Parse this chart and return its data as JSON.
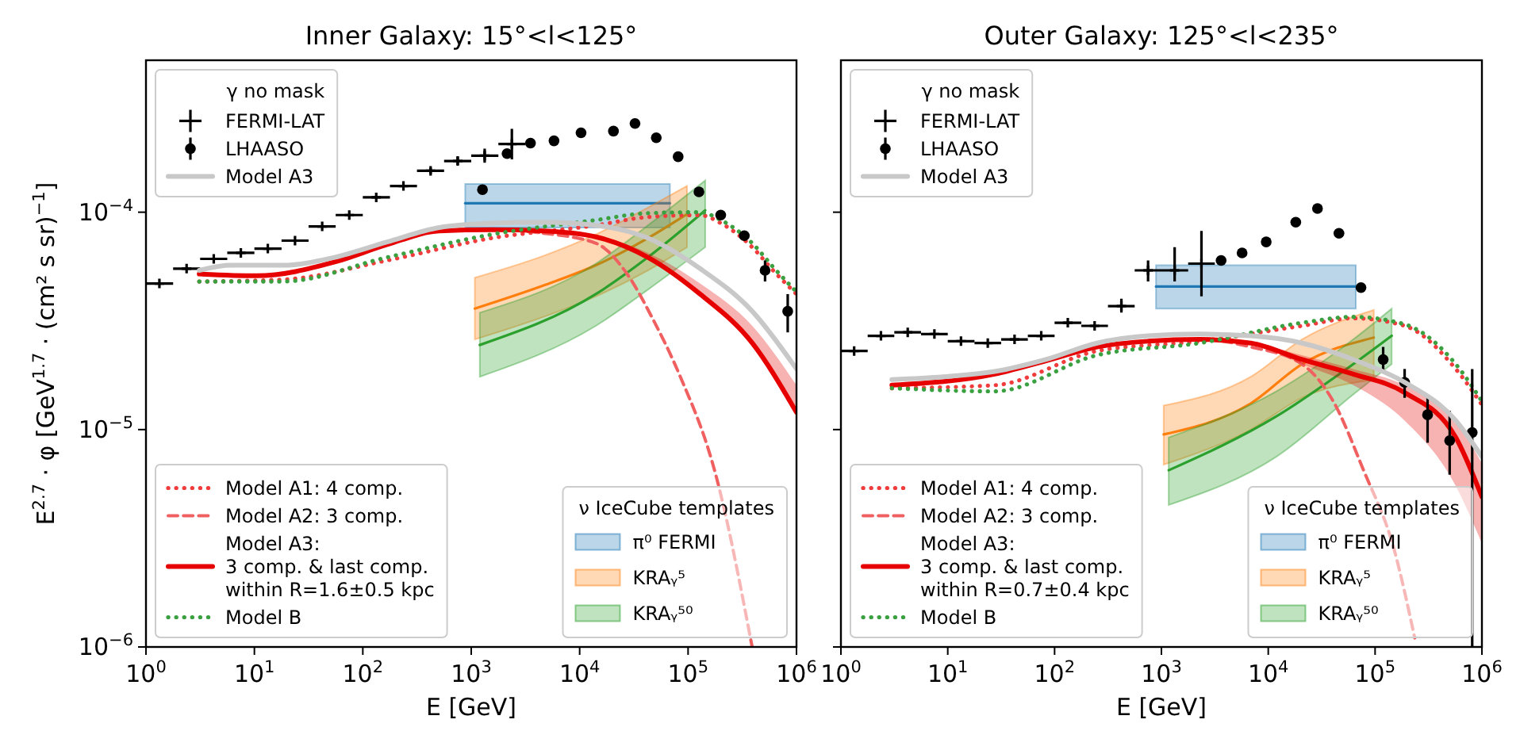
{
  "chart_data": [
    {
      "type": "line",
      "title": "Inner Galaxy: 15°<l<125°",
      "xlabel": "E [GeV]",
      "ylabel": "E$^{2.7}$ · φ [GeV$^{1.7}$ · (cm² s sr)$^{−1}$]",
      "log": "xy",
      "xlim": [
        1,
        1000000
      ],
      "ylim": [
        1e-06,
        0.0005
      ],
      "xticks": [
        {
          "value": 1,
          "label": "10$^{0}$"
        },
        {
          "value": 10,
          "label": "10$^{1}$"
        },
        {
          "value": 100,
          "label": "10$^{2}$"
        },
        {
          "value": 1000,
          "label": "10$^{3}$"
        },
        {
          "value": 10000,
          "label": "10$^{4}$"
        },
        {
          "value": 100000,
          "label": "10$^{5}$"
        },
        {
          "value": 1000000,
          "label": "10$^{6}$"
        }
      ],
      "yticks": [
        {
          "value": 1e-06,
          "label": "10$^{−6}$"
        },
        {
          "value": 1e-05,
          "label": "10$^{−5}$"
        },
        {
          "value": 0.0001,
          "label": "10$^{−4}$"
        }
      ],
      "legend": [
        "top left",
        "bottom left",
        "bottom right"
      ],
      "legend_title": [
        "γ no mask",
        null,
        "ν IceCube templates"
      ],
      "series": [
        {
          "name": "π⁰ FERMI",
          "color": "#1f77b4",
          "x": [
            880,
            68000
          ],
          "values": [
            0.00011,
            0.00011
          ],
          "lower": [
            8.5e-05,
            8.5e-05
          ],
          "upper": [
            0.000135,
            0.000135
          ]
        },
        {
          "name": "KRAᵧ⁵",
          "color": "#ff7f0e",
          "x": [
            1080,
            4650,
            14100,
            42600,
            97800
          ],
          "values": [
            3.6e-05,
            4.6e-05,
            5.7e-05,
            7.6e-05,
            9.8e-05
          ],
          "lower": [
            2.6e-05,
            3.3e-05,
            4.1e-05,
            5.4e-05,
            6.9e-05
          ],
          "upper": [
            5e-05,
            6.3e-05,
            7.9e-05,
            0.000105,
            0.000132
          ]
        },
        {
          "name": "KRAᵧ⁵⁰",
          "color": "#2ca02c",
          "x": [
            1200,
            14100,
            42600,
            144000
          ],
          "values": [
            2.45e-05,
            4.2e-05,
            6.2e-05,
            0.000102
          ],
          "lower": [
            1.75e-05,
            3e-05,
            4.4e-05,
            6.9e-05
          ],
          "upper": [
            3.45e-05,
            5.8e-05,
            8.7e-05,
            0.00014
          ]
        },
        {
          "name": "Model A1: 4 comp.",
          "color": "#f03c3c",
          "line_style": "dotted",
          "x": [
            3.1,
            18.3,
            168,
            1540,
            14100,
            42600,
            129000,
            201000,
            391000,
            608000,
            1000000
          ],
          "values": [
            4.8e-05,
            4.9e-05,
            6e-05,
            7.6e-05,
            8.7e-05,
            9.5e-05,
            9.7e-05,
            8.9e-05,
            6.9e-05,
            5.4e-05,
            4.2e-05
          ]
        },
        {
          "name": "Model A2: 3 comp.",
          "color": "#f06060",
          "line_style": "dashed",
          "x": [
            3.1,
            10.5,
            55,
            168,
            508,
            1540,
            4650,
            14100,
            27400,
            47700,
            82800,
            180000,
            390000
          ],
          "values": [
            5.2e-05,
            5.1e-05,
            5.9e-05,
            7.1e-05,
            8.2e-05,
            8.3e-05,
            8e-05,
            7.2e-05,
            5.2e-05,
            3.2e-05,
            1.8e-05,
            6.2e-06,
            1e-06
          ]
        },
        {
          "name": "Model A3:\n3 comp. & last comp.\nwithin R=1.6±0.5 kpc",
          "color": "#e60000",
          "line_style": "solid",
          "x": [
            3.1,
            10.5,
            55,
            168,
            508,
            1540,
            4650,
            14100,
            42600,
            129000,
            391000,
            1000000
          ],
          "values": [
            5.2e-05,
            5.1e-05,
            5.9e-05,
            7.1e-05,
            8.2e-05,
            8.3e-05,
            8.2e-05,
            7.7e-05,
            6.2e-05,
            4.2e-05,
            2.5e-05,
            1.2e-05
          ],
          "lower": [
            5.2e-05,
            5.1e-05,
            5.9e-05,
            7.1e-05,
            8.2e-05,
            8.3e-05,
            8.2e-05,
            7.7e-05,
            6.2e-05,
            4.2e-05,
            2.5e-05,
            1.2e-05
          ],
          "upper": [
            5.2e-05,
            5.1e-05,
            5.9e-05,
            7.1e-05,
            8.2e-05,
            8.3e-05,
            8.2e-05,
            7.8e-05,
            6.5e-05,
            4.7e-05,
            3e-05,
            1.6e-05
          ]
        },
        {
          "name": "Model B",
          "color": "#3aa040",
          "line_style": "dotted",
          "x": [
            3.1,
            18.3,
            168,
            1540,
            14100,
            42600,
            129000,
            201000,
            391000,
            608000,
            1000000
          ],
          "values": [
            4.8e-05,
            4.8e-05,
            6.2e-05,
            7.9e-05,
            9.2e-05,
            9.9e-05,
            0.0001,
            9.2e-05,
            7.2e-05,
            5.6e-05,
            4.3e-05
          ]
        },
        {
          "type": "scatter",
          "name": "FERMI-LAT",
          "color": "#000000",
          "marker": "cross",
          "x": [
            1.33,
            2.37,
            4.22,
            7.5,
            13.3,
            23.7,
            42.2,
            75,
            133,
            237,
            422,
            750,
            1330,
            2370
          ],
          "values": [
            4.7e-05,
            5.5e-05,
            6.1e-05,
            6.5e-05,
            6.8e-05,
            7.4e-05,
            8.6e-05,
            9.7e-05,
            0.000117,
            0.000132,
            0.000155,
            0.000172,
            0.000182,
            0.000206
          ],
          "xerrors": [
            [
              1,
              1.78
            ],
            [
              1.78,
              3.16
            ],
            [
              3.16,
              5.62
            ],
            [
              5.62,
              10
            ],
            [
              10,
              17.8
            ],
            [
              17.8,
              31.6
            ],
            [
              31.6,
              56.2
            ],
            [
              56.2,
              100
            ],
            [
              100,
              178
            ],
            [
              178,
              316
            ],
            [
              316,
              562
            ],
            [
              562,
              1000
            ],
            [
              1000,
              1780
            ],
            [
              1780,
              3160
            ]
          ],
          "errors": [
            null,
            null,
            null,
            null,
            null,
            null,
            null,
            null,
            null,
            null,
            [
              0.00015,
              0.00016
            ],
            [
              0.000165,
              0.00018
            ],
            [
              0.000169,
              0.000196
            ],
            [
              0.000175,
              0.000242
            ]
          ]
        },
        {
          "type": "scatter",
          "name": "LHAASO",
          "color": "#000000",
          "marker": "circle",
          "x": [
            1270,
            2140,
            3520,
            5800,
            10300,
            20500,
            32400,
            50900,
            81000,
            126000,
            200000,
            330000,
            513000,
            830000
          ],
          "values": [
            0.000127,
            0.000186,
            0.000208,
            0.000213,
            0.000232,
            0.000236,
            0.000256,
            0.00022,
            0.00018,
            0.000124,
            9.7e-05,
            7.8e-05,
            5.4e-05,
            3.5e-05
          ],
          "errors": [
            null,
            null,
            null,
            null,
            null,
            null,
            null,
            null,
            null,
            null,
            null,
            null,
            [
              4.8e-05,
              6e-05
            ],
            [
              2.8e-05,
              4.2e-05
            ]
          ]
        },
        {
          "name": "Model A3",
          "color": "#c8c8c8",
          "line_style": "solid",
          "x": [
            3.1,
            6.05,
            18.3,
            55,
            168,
            508,
            1540,
            4650,
            14100,
            42600,
            129000,
            391000,
            1000000
          ],
          "values": [
            5.4e-05,
            5.7e-05,
            5.7e-05,
            6.2e-05,
            7.3e-05,
            8.5e-05,
            8.9e-05,
            9e-05,
            8.7e-05,
            7.6e-05,
            5.5e-05,
            3.5e-05,
            1.9e-05
          ]
        }
      ]
    },
    {
      "type": "line",
      "title": "Outer Galaxy: 125°<l<235°",
      "xlabel": "E [GeV]",
      "log": "xy",
      "xlim": [
        1,
        1000000
      ],
      "ylim": [
        1e-06,
        0.0005
      ],
      "tick_labels": "x",
      "xticks": [
        {
          "value": 1,
          "label": "10$^{0}$"
        },
        {
          "value": 10,
          "label": "10$^{1}$"
        },
        {
          "value": 100,
          "label": "10$^{2}$"
        },
        {
          "value": 1000,
          "label": "10$^{3}$"
        },
        {
          "value": 10000,
          "label": "10$^{4}$"
        },
        {
          "value": 100000,
          "label": "10$^{5}$"
        },
        {
          "value": 1000000,
          "label": "10$^{6}$"
        }
      ],
      "yticks": [
        {
          "value": 1e-06,
          "label": null
        },
        {
          "value": 1e-05,
          "label": null
        },
        {
          "value": 0.0001,
          "label": null
        }
      ],
      "legend": [
        "top left",
        "bottom left",
        "bottom right"
      ],
      "legend_title": [
        "γ no mask",
        null,
        "ν IceCube templates"
      ],
      "series": [
        {
          "name": "π⁰ FERMI",
          "color": "#1f77b4",
          "x": [
            890,
            66000
          ],
          "values": [
            4.55e-05,
            4.55e-05
          ],
          "lower": [
            3.6e-05,
            3.6e-05
          ],
          "upper": [
            5.7e-05,
            5.7e-05
          ]
        },
        {
          "name": "KRAᵧ⁵",
          "color": "#ff7f0e",
          "x": [
            1050,
            6870,
            20700,
            97300
          ],
          "values": [
            9.5e-06,
            1.32e-05,
            2e-05,
            2.65e-05
          ],
          "lower": [
            6.9e-06,
            1e-05,
            1.4e-05,
            1.7e-05
          ],
          "upper": [
            1.29e-05,
            1.75e-05,
            2.6e-05,
            3.55e-05
          ]
        },
        {
          "name": "KRAᵧ⁵⁰",
          "color": "#2ca02c",
          "x": [
            1170,
            11900,
            62500,
            143000
          ],
          "values": [
            6.5e-06,
            1.15e-05,
            2e-05,
            2.7e-05
          ],
          "lower": [
            4.5e-06,
            7.5e-06,
            1.45e-05,
            2e-05
          ],
          "upper": [
            9.2e-06,
            1.5e-05,
            2.6e-05,
            3.6e-05
          ]
        },
        {
          "name": "Model A1: 4 comp.",
          "color": "#f03c3c",
          "line_style": "dotted",
          "x": [
            3,
            27.5,
            250,
            2280,
            20700,
            62500,
            189000,
            569000,
            1000000
          ],
          "values": [
            1.55e-05,
            1.6e-05,
            2.3e-05,
            2.55e-05,
            3e-05,
            3.25e-05,
            3e-05,
            1.9e-05,
            1.3e-05
          ]
        },
        {
          "name": "Model A2: 3 comp.",
          "color": "#f06060",
          "line_style": "dashed",
          "x": [
            3,
            27.5,
            83,
            250,
            755,
            2280,
            6870,
            20700,
            40200,
            78000,
            151000,
            235000
          ],
          "values": [
            1.6e-05,
            1.8e-05,
            2.07e-05,
            2.4e-05,
            2.55e-05,
            2.6e-05,
            2.4e-05,
            2e-05,
            1.36e-05,
            6.5e-06,
            2.8e-06,
            1.1e-06
          ]
        },
        {
          "name": "Model A3:\n3 comp. & last comp.\nwithin R=0.7±0.4 kpc",
          "color": "#e60000",
          "line_style": "solid",
          "x": [
            3,
            27.5,
            83,
            250,
            755,
            2280,
            6870,
            20700,
            62500,
            189000,
            569000,
            1000000
          ],
          "values": [
            1.6e-05,
            1.8e-05,
            2.07e-05,
            2.4e-05,
            2.55e-05,
            2.6e-05,
            2.5e-05,
            2.1e-05,
            1.8e-05,
            1.48e-05,
            9.2e-06,
            4.9e-06
          ],
          "lower": [
            1.6e-05,
            1.8e-05,
            2.07e-05,
            2.4e-05,
            2.55e-05,
            2.6e-05,
            2.5e-05,
            2e-05,
            1.6e-05,
            1.1e-05,
            5.5e-06,
            3e-06
          ],
          "upper": [
            1.6e-05,
            1.8e-05,
            2.07e-05,
            2.4e-05,
            2.55e-05,
            2.6e-05,
            2.5e-05,
            2.2e-05,
            1.9e-05,
            1.6e-05,
            1.1e-05,
            7e-06
          ]
        },
        {
          "name": "Model B",
          "color": "#3aa040",
          "line_style": "dotted",
          "x": [
            3,
            27.5,
            250,
            2280,
            20700,
            62500,
            189000,
            569000,
            1000000
          ],
          "values": [
            1.55e-05,
            1.5e-05,
            2.2e-05,
            2.5e-05,
            3.1e-05,
            3.3e-05,
            3.05e-05,
            2e-05,
            1.35e-05
          ]
        },
        {
          "type": "scatter",
          "name": "FERMI-LAT",
          "color": "#000000",
          "marker": "cross",
          "x": [
            1.33,
            2.37,
            4.22,
            7.5,
            13.3,
            23.7,
            42.2,
            75,
            133,
            237,
            422,
            750,
            1330,
            2370
          ],
          "values": [
            2.3e-05,
            2.7e-05,
            2.8e-05,
            2.75e-05,
            2.55e-05,
            2.5e-05,
            2.6e-05,
            2.7e-05,
            3.1e-05,
            3e-05,
            3.7e-05,
            5.4e-05,
            5.4e-05,
            5.8e-05
          ],
          "xerrors": [
            [
              1,
              1.78
            ],
            [
              1.78,
              3.16
            ],
            [
              3.16,
              5.62
            ],
            [
              5.62,
              10
            ],
            [
              10,
              17.8
            ],
            [
              17.8,
              31.6
            ],
            [
              31.6,
              56.2
            ],
            [
              56.2,
              100
            ],
            [
              100,
              178
            ],
            [
              178,
              316
            ],
            [
              316,
              562
            ],
            [
              562,
              1000
            ],
            [
              1000,
              1780
            ],
            [
              1780,
              3160
            ]
          ],
          "errors": [
            null,
            null,
            null,
            null,
            null,
            null,
            null,
            null,
            null,
            null,
            [
              3.45e-05,
              4e-05
            ],
            [
              4.8e-05,
              6e-05
            ],
            [
              4.8e-05,
              6.9e-05
            ],
            [
              4.1e-05,
              8.2e-05
            ]
          ]
        },
        {
          "type": "scatter",
          "name": "LHAASO",
          "color": "#000000",
          "marker": "circle",
          "x": [
            3620,
            5690,
            9570,
            18100,
            28900,
            45900,
            73800,
            119000,
            189000,
            310000,
            499000,
            811000
          ],
          "values": [
            6e-05,
            6.5e-05,
            7.3e-05,
            9e-05,
            0.000104,
            8e-05,
            4.5e-05,
            2.1e-05,
            1.65e-05,
            1.17e-05,
            8.9e-06,
            9.7e-06
          ],
          "errors": [
            null,
            null,
            null,
            null,
            null,
            null,
            null,
            [
              1.85e-05,
              2.4e-05
            ],
            [
              1.4e-05,
              1.9e-05
            ],
            [
              8.7e-06,
              1.44e-05
            ],
            [
              6.2e-06,
              1.22e-05
            ],
            [
              1e-06,
              1.9e-05
            ]
          ]
        },
        {
          "name": "Model A3",
          "color": "#c8c8c8",
          "line_style": "solid",
          "x": [
            3,
            9.1,
            27.5,
            83,
            250,
            755,
            2280,
            6870,
            20700,
            62500,
            189000,
            569000,
            1000000
          ],
          "values": [
            1.7e-05,
            1.75e-05,
            1.85e-05,
            2.1e-05,
            2.5e-05,
            2.7e-05,
            2.75e-05,
            2.7e-05,
            2.5e-05,
            2.1e-05,
            1.65e-05,
            1.1e-05,
            7.5e-06
          ]
        }
      ]
    }
  ]
}
